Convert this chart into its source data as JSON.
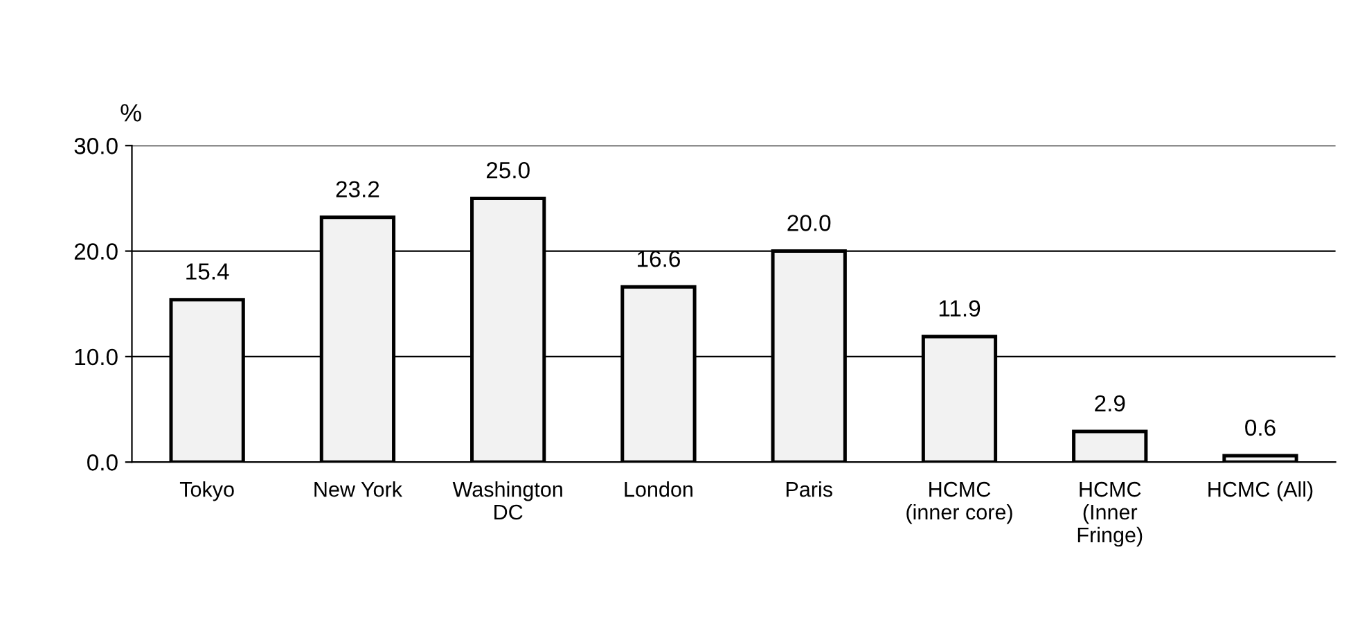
{
  "chart_data": {
    "type": "bar",
    "ylabel": "%",
    "categories": [
      "Tokyo",
      "New York",
      "Washington\nDC",
      "London",
      "Paris",
      "HCMC\n(inner core)",
      "HCMC\n(Inner\nFringe)",
      "HCMC (All)"
    ],
    "values": [
      15.4,
      23.2,
      25.0,
      16.6,
      20.0,
      11.9,
      2.9,
      0.6
    ],
    "value_labels": [
      "15.4",
      "23.2",
      "25.0",
      "16.6",
      "20.0",
      "11.9",
      "2.9",
      "0.6"
    ],
    "color": "#f2f2f2",
    "ylim": [
      0,
      30
    ],
    "yticks": [
      {
        "value": 0,
        "label": "0.0"
      },
      {
        "value": 10,
        "label": "10.0"
      },
      {
        "value": 20,
        "label": "20.0"
      },
      {
        "value": 30,
        "label": "30.0"
      }
    ],
    "grid": "y",
    "legend": false
  }
}
